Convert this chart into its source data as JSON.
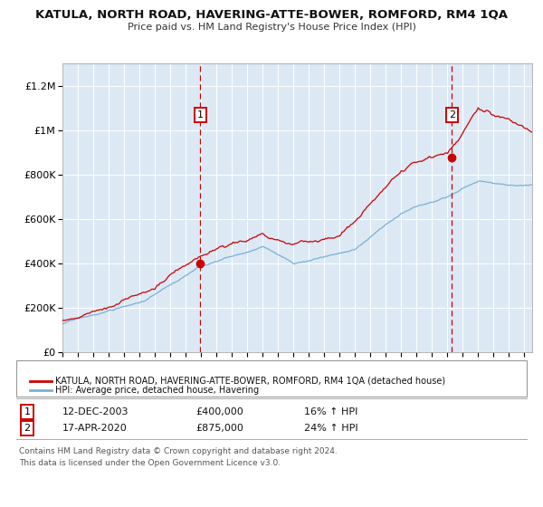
{
  "title": "KATULA, NORTH ROAD, HAVERING-ATTE-BOWER, ROMFORD, RM4 1QA",
  "subtitle": "Price paid vs. HM Land Registry's House Price Index (HPI)",
  "background_color": "#ffffff",
  "plot_bg_color": "#dce9f5",
  "grid_color": "#c8d8e8",
  "red_line_color": "#cc0000",
  "blue_line_color": "#7ab0d4",
  "marker_color": "#cc0000",
  "vline_color": "#cc0000",
  "legend_line1": "KATULA, NORTH ROAD, HAVERING-ATTE-BOWER, ROMFORD, RM4 1QA (detached house)",
  "legend_line2": "HPI: Average price, detached house, Havering",
  "sale1_label": "1",
  "sale1_date": "12-DEC-2003",
  "sale1_price": "£400,000",
  "sale1_hpi": "16% ↑ HPI",
  "sale1_x": 2003.958,
  "sale1_y": 400000,
  "sale2_label": "2",
  "sale2_date": "17-APR-2020",
  "sale2_price": "£875,000",
  "sale2_hpi": "24% ↑ HPI",
  "sale2_x": 2020.292,
  "sale2_y": 875000,
  "ylim": [
    0,
    1300000
  ],
  "xlim": [
    1995.0,
    2025.5
  ],
  "yticks": [
    0,
    200000,
    400000,
    600000,
    800000,
    1000000,
    1200000
  ],
  "ytick_labels": [
    "£0",
    "£200K",
    "£400K",
    "£600K",
    "£800K",
    "£1M",
    "£1.2M"
  ],
  "xticks": [
    1995,
    1996,
    1997,
    1998,
    1999,
    2000,
    2001,
    2002,
    2003,
    2004,
    2005,
    2006,
    2007,
    2008,
    2009,
    2010,
    2011,
    2012,
    2013,
    2014,
    2015,
    2016,
    2017,
    2018,
    2019,
    2020,
    2021,
    2022,
    2023,
    2024,
    2025
  ],
  "footer1": "Contains HM Land Registry data © Crown copyright and database right 2024.",
  "footer2": "This data is licensed under the Open Government Licence v3.0."
}
